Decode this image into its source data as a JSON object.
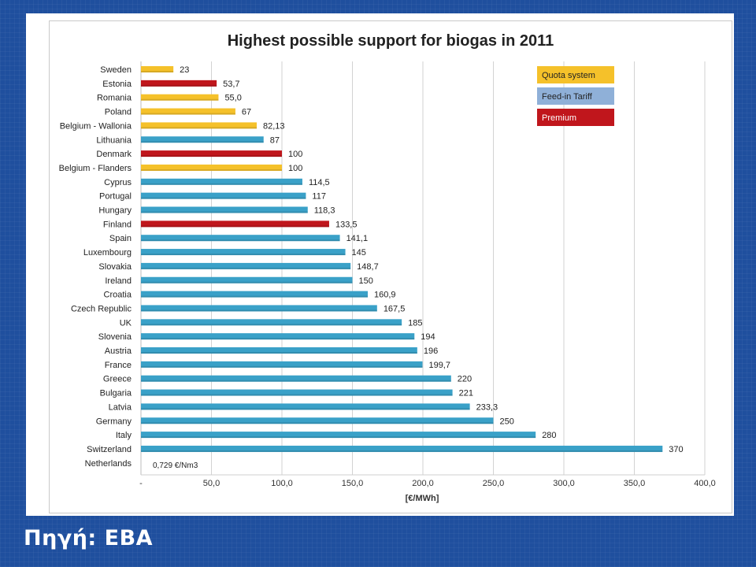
{
  "source_label": "Πηγή: EBA",
  "colors": {
    "quota": "#f5c12a",
    "fit": "#3aa1c8",
    "premium": "#c0161c",
    "fit_legend": "#8fb0d8"
  },
  "chart_data": {
    "type": "bar",
    "orientation": "horizontal",
    "title": "Highest possible support for biogas in 2011",
    "xlabel": "[€/MWh]",
    "ylabel": "",
    "xlim": [
      0,
      400
    ],
    "xticks": [
      0,
      50,
      100,
      150,
      200,
      250,
      300,
      350,
      400
    ],
    "xtick_labels": [
      "-",
      "50,0",
      "100,0",
      "150,0",
      "200,0",
      "250,0",
      "300,0",
      "350,0",
      "400,0"
    ],
    "grid": "vertical",
    "legend_position": "top-right",
    "legend": [
      {
        "key": "quota",
        "label": "Quota system"
      },
      {
        "key": "fit",
        "label": "Feed-in Tariff"
      },
      {
        "key": "premium",
        "label": "Premium"
      }
    ],
    "categories": [
      "Sweden",
      "Estonia",
      "Romania",
      "Poland",
      "Belgium - Wallonia",
      "Lithuania",
      "Denmark",
      "Belgium - Flanders",
      "Cyprus",
      "Portugal",
      "Hungary",
      "Finland",
      "Spain",
      "Luxembourg",
      "Slovakia",
      "Ireland",
      "Croatia",
      "Czech Republic",
      "UK",
      "Slovenia",
      "Austria",
      "France",
      "Greece",
      "Bulgaria",
      "Latvia",
      "Germany",
      "Italy",
      "Switzerland",
      "Netherlands"
    ],
    "values": [
      23,
      53.7,
      55.0,
      67,
      82.13,
      87,
      100,
      100,
      114.5,
      117,
      118.3,
      133.5,
      141.1,
      145,
      148.7,
      150,
      160.9,
      167.5,
      185,
      194,
      196,
      199.7,
      220,
      221,
      233.3,
      250,
      280,
      370,
      0.729
    ],
    "value_labels": [
      "23",
      "53,7",
      "55,0",
      "67",
      "82,13",
      "87",
      "100",
      "100",
      "114,5",
      "117",
      "118,3",
      "133,5",
      "141,1",
      "145",
      "148,7",
      "150",
      "160,9",
      "167,5",
      "185",
      "194",
      "196",
      "199,7",
      "220",
      "221",
      "233,3",
      "250",
      "280",
      "370",
      "0,729 €/Nm3"
    ],
    "systems": [
      "quota",
      "premium",
      "quota",
      "quota",
      "quota",
      "fit",
      "premium",
      "quota",
      "fit",
      "fit",
      "fit",
      "premium",
      "fit",
      "fit",
      "fit",
      "fit",
      "fit",
      "fit",
      "fit",
      "fit",
      "fit",
      "fit",
      "fit",
      "fit",
      "fit",
      "fit",
      "fit",
      "fit",
      "none"
    ]
  }
}
